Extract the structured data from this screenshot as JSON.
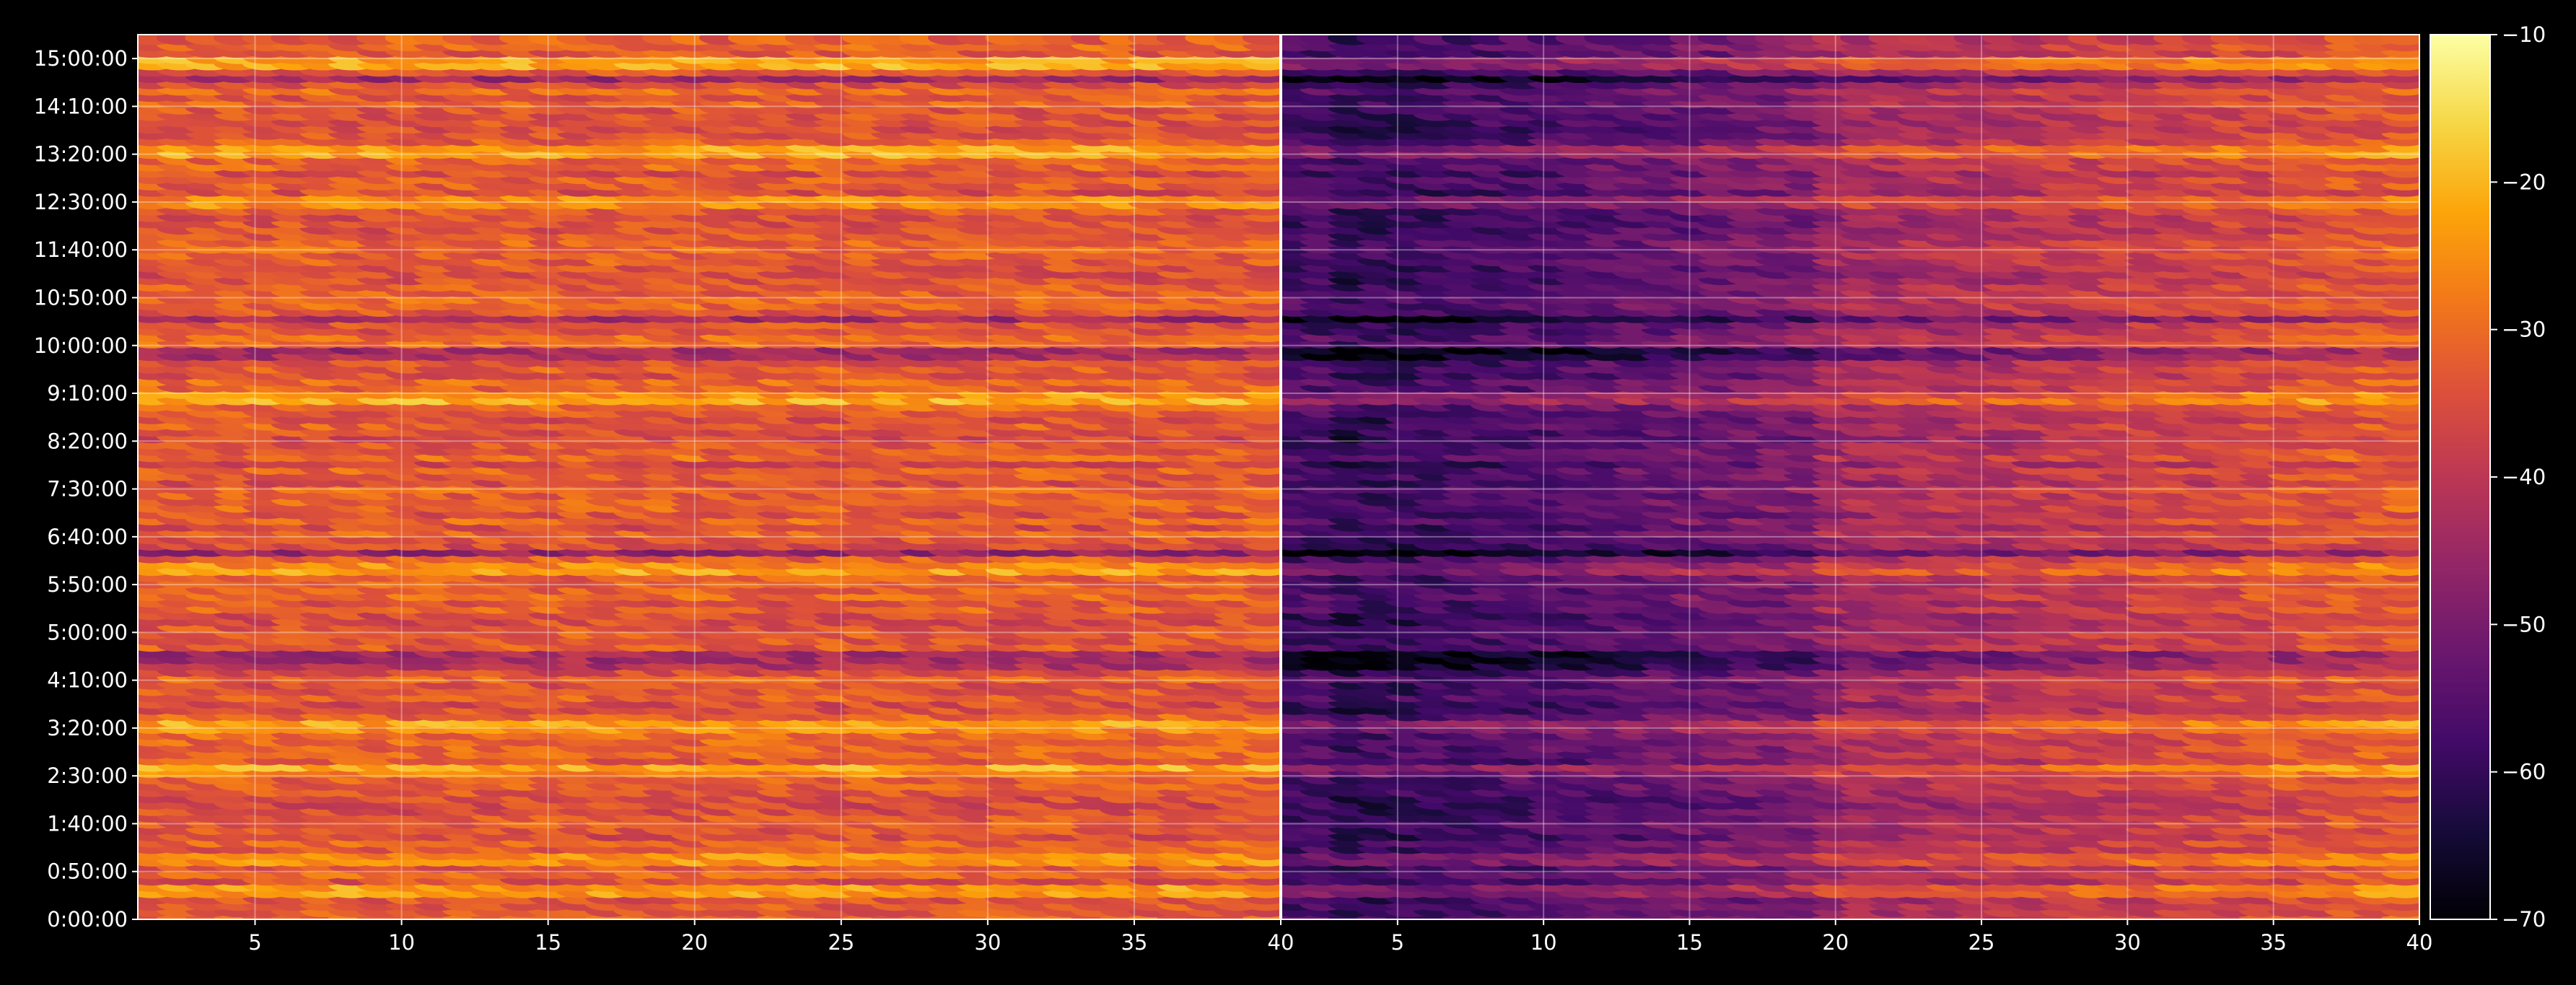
{
  "chart_data": {
    "type": "heatmap",
    "title": "",
    "xlabel": "",
    "ylabel": "",
    "panels": [
      {
        "name": "",
        "x_range": [
          1,
          40
        ],
        "x_ticks": [
          5,
          10,
          15,
          20,
          25,
          30,
          35,
          40
        ],
        "description_level_db": "mostly -40 to -20, brightest bands near 14:40, 12:10, 9:00, 4:20, 3:20, 2:45, 0:40"
      },
      {
        "name": "",
        "x_range": [
          40,
          80
        ],
        "x_tick_labels": [
          "40",
          "5",
          "10",
          "15",
          "20",
          "25",
          "30",
          "35",
          "40"
        ],
        "description_level_db": "darker, -70 to -40 near x 1-20, rising to -30 to -20 toward x 40"
      }
    ],
    "y_ticks": [
      "0:00:00",
      "0:50:00",
      "1:40:00",
      "2:30:00",
      "3:20:00",
      "4:10:00",
      "5:00:00",
      "5:50:00",
      "6:40:00",
      "7:30:00",
      "8:20:00",
      "9:10:00",
      "10:00:00",
      "10:50:00",
      "11:40:00",
      "12:30:00",
      "13:20:00",
      "14:10:00",
      "15:00:00"
    ],
    "x_tick_labels_left": [
      "5",
      "10",
      "15",
      "20",
      "25",
      "30",
      "35",
      "40"
    ],
    "x_tick_labels_right": [
      "5",
      "10",
      "15",
      "20",
      "25",
      "30",
      "35",
      "40"
    ],
    "colorbar": {
      "colormap": "inferno",
      "min": -70,
      "max": -10,
      "ticks": [
        "−10",
        "−20",
        "−30",
        "−40",
        "−50",
        "−60",
        "−70"
      ]
    },
    "grid": true,
    "background": "#000000",
    "grid_color": "#ffffff"
  }
}
